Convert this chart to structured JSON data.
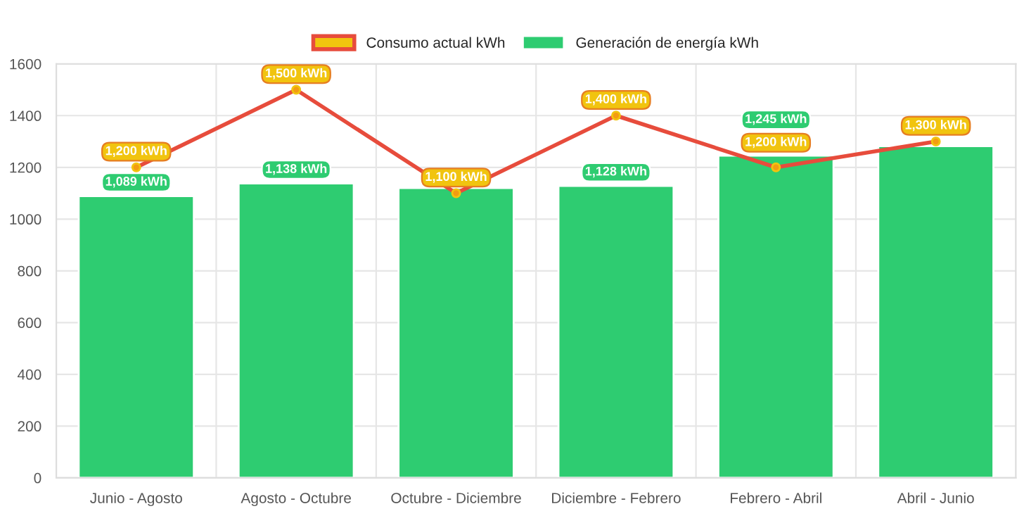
{
  "chart_data": {
    "type": "bar",
    "categories": [
      "Junio - Agosto",
      "Agosto - Octubre",
      "Octubre - Diciembre",
      "Diciembre - Febrero",
      "Febrero - Abril",
      "Abril - Junio"
    ],
    "series": [
      {
        "name": "Consumo actual kWh",
        "type": "line",
        "color": "#e74c3c",
        "values": [
          1200,
          1500,
          1100,
          1400,
          1200,
          1300
        ],
        "value_labels": [
          "1,200 kWh",
          "1,500 kWh",
          "1,100 kWh",
          "1,400 kWh",
          "1,200 kWh",
          "1,300 kWh"
        ]
      },
      {
        "name": "Generación de energía kWh",
        "color": "#2ecc71",
        "values": [
          1089,
          1138,
          1120,
          1128,
          1245,
          1282
        ],
        "value_labels": [
          "1,089 kWh",
          "1,138 kWh",
          null,
          "1,128 kWh",
          "1,245 kWh",
          null
        ]
      }
    ],
    "ylim": [
      0,
      1600
    ],
    "yticks": [
      0,
      200,
      400,
      600,
      800,
      1000,
      1200,
      1400,
      1600
    ],
    "grid": true,
    "legend": "top",
    "marker": "circle"
  }
}
